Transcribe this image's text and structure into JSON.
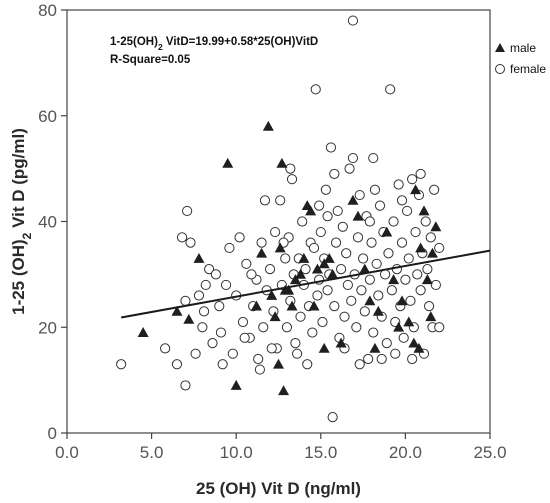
{
  "chart_data": {
    "type": "scatter",
    "xlabel": "25 (OH) Vit D (ng/ml)",
    "ylabel_parts": [
      "1-25 (OH)",
      "2",
      " Vit D (pg/ml)"
    ],
    "xlim": [
      0,
      25
    ],
    "ylim": [
      0,
      80
    ],
    "x_ticks": [
      "0.0",
      "5.0",
      "10.0",
      "15.0",
      "20.0",
      "25.0"
    ],
    "y_ticks": [
      "0",
      "20",
      "40",
      "60",
      "80"
    ],
    "x_tick_values": [
      0,
      5,
      10,
      15,
      20,
      25
    ],
    "y_tick_values": [
      0,
      20,
      40,
      60,
      80
    ],
    "equation_parts": [
      "1-25(OH)",
      "2",
      " VitD=19.99+0.58*25(OH)VitD"
    ],
    "r_square": "R-Square=0.05",
    "regression": {
      "intercept": 19.99,
      "slope": 0.58,
      "x_range": [
        3.2,
        25
      ]
    },
    "legend": {
      "position": "top-right",
      "male_label": "male",
      "female_label": "female"
    },
    "grid": false,
    "colors": {
      "male": "#1f1f1f",
      "female_edge": "#333333",
      "line": "#1a1a1a",
      "axis": "#444444"
    },
    "series": [
      {
        "name": "male",
        "marker": "triangle-filled",
        "points": [
          [
            4.5,
            19
          ],
          [
            6.5,
            23
          ],
          [
            7.2,
            21.5
          ],
          [
            7.8,
            33
          ],
          [
            9.5,
            51
          ],
          [
            10,
            9
          ],
          [
            11.2,
            24
          ],
          [
            11.5,
            34
          ],
          [
            11.9,
            58
          ],
          [
            12.1,
            26
          ],
          [
            12.3,
            22
          ],
          [
            12.5,
            13
          ],
          [
            12.6,
            35
          ],
          [
            12.7,
            51
          ],
          [
            12.9,
            27
          ],
          [
            12.8,
            8
          ],
          [
            13.3,
            24
          ],
          [
            13.5,
            29
          ],
          [
            13.8,
            30
          ],
          [
            14,
            33
          ],
          [
            14.2,
            43
          ],
          [
            14.4,
            42
          ],
          [
            14.8,
            31
          ],
          [
            15.2,
            16
          ],
          [
            15.2,
            32
          ],
          [
            15.5,
            33
          ],
          [
            15.7,
            30
          ],
          [
            16.2,
            17
          ],
          [
            16.9,
            44
          ],
          [
            17.2,
            41
          ],
          [
            17.6,
            31
          ],
          [
            17.9,
            25
          ],
          [
            18.2,
            16
          ],
          [
            18.4,
            23
          ],
          [
            18.9,
            38
          ],
          [
            19.3,
            29
          ],
          [
            20.2,
            21
          ],
          [
            20.6,
            46
          ],
          [
            20.9,
            35
          ],
          [
            21.1,
            42
          ],
          [
            20.8,
            16
          ],
          [
            20.5,
            17
          ],
          [
            21.3,
            29
          ],
          [
            21.5,
            22
          ],
          [
            21.6,
            34
          ],
          [
            21.8,
            39
          ],
          [
            19.6,
            20
          ],
          [
            19.8,
            25
          ],
          [
            14.6,
            24
          ],
          [
            13.1,
            27
          ]
        ]
      },
      {
        "name": "female",
        "marker": "circle-open",
        "points": [
          [
            3.2,
            13
          ],
          [
            5.8,
            16
          ],
          [
            6.5,
            13
          ],
          [
            6.8,
            37
          ],
          [
            7,
            25
          ],
          [
            7,
            9
          ],
          [
            7.1,
            42
          ],
          [
            7.3,
            36
          ],
          [
            7.6,
            15
          ],
          [
            7.8,
            26
          ],
          [
            8,
            20
          ],
          [
            8.2,
            28
          ],
          [
            8.4,
            31
          ],
          [
            8.6,
            17
          ],
          [
            8.8,
            30
          ],
          [
            9,
            24
          ],
          [
            9.2,
            13
          ],
          [
            9.4,
            28
          ],
          [
            9.6,
            35
          ],
          [
            9.8,
            15
          ],
          [
            10,
            26
          ],
          [
            10.2,
            37
          ],
          [
            10.4,
            21
          ],
          [
            10.6,
            32
          ],
          [
            10.8,
            18
          ],
          [
            11,
            24
          ],
          [
            11.2,
            29
          ],
          [
            11.3,
            14
          ],
          [
            11.5,
            36
          ],
          [
            11.6,
            20
          ],
          [
            11.8,
            27
          ],
          [
            12,
            31
          ],
          [
            12.2,
            23
          ],
          [
            12.3,
            38
          ],
          [
            12.4,
            16
          ],
          [
            12.6,
            44
          ],
          [
            12.7,
            28
          ],
          [
            12.9,
            33
          ],
          [
            13,
            20
          ],
          [
            13.1,
            37
          ],
          [
            13.2,
            25
          ],
          [
            13.3,
            48
          ],
          [
            13.4,
            30
          ],
          [
            13.5,
            17
          ],
          [
            13.7,
            33
          ],
          [
            13.8,
            22
          ],
          [
            13.9,
            40
          ],
          [
            14,
            28
          ],
          [
            14.1,
            31
          ],
          [
            14.3,
            24
          ],
          [
            14.4,
            36
          ],
          [
            14.5,
            19
          ],
          [
            14.6,
            35
          ],
          [
            14.7,
            65
          ],
          [
            14.8,
            26
          ],
          [
            14.9,
            29
          ],
          [
            15,
            38
          ],
          [
            15.1,
            21
          ],
          [
            15.2,
            33
          ],
          [
            15.3,
            46
          ],
          [
            15.4,
            27
          ],
          [
            15.5,
            30
          ],
          [
            15.6,
            54
          ],
          [
            15.7,
            3
          ],
          [
            15.8,
            24
          ],
          [
            15.9,
            36
          ],
          [
            16,
            42
          ],
          [
            16.1,
            18
          ],
          [
            16.2,
            31
          ],
          [
            16.3,
            39
          ],
          [
            16.4,
            22
          ],
          [
            16.5,
            34
          ],
          [
            16.6,
            28
          ],
          [
            16.7,
            50
          ],
          [
            16.8,
            25
          ],
          [
            16.9,
            78
          ],
          [
            17,
            30
          ],
          [
            17.1,
            20
          ],
          [
            17.2,
            37
          ],
          [
            17.3,
            45
          ],
          [
            17.4,
            27
          ],
          [
            17.5,
            33
          ],
          [
            17.6,
            23
          ],
          [
            17.7,
            41
          ],
          [
            17.8,
            14
          ],
          [
            17.9,
            29
          ],
          [
            18,
            36
          ],
          [
            18.1,
            19
          ],
          [
            18.2,
            46
          ],
          [
            18.3,
            32
          ],
          [
            18.4,
            26
          ],
          [
            18.5,
            43
          ],
          [
            18.6,
            22
          ],
          [
            18.7,
            38
          ],
          [
            18.8,
            30
          ],
          [
            18.9,
            17
          ],
          [
            19,
            34
          ],
          [
            19.1,
            65
          ],
          [
            19.2,
            27
          ],
          [
            19.3,
            40
          ],
          [
            19.4,
            21
          ],
          [
            19.5,
            31
          ],
          [
            19.6,
            47
          ],
          [
            19.7,
            24
          ],
          [
            19.8,
            36
          ],
          [
            19.9,
            18
          ],
          [
            20,
            29
          ],
          [
            20.1,
            42
          ],
          [
            20.2,
            33
          ],
          [
            20.3,
            25
          ],
          [
            20.4,
            48
          ],
          [
            20.5,
            20
          ],
          [
            20.6,
            38
          ],
          [
            20.7,
            30
          ],
          [
            20.8,
            45
          ],
          [
            20.9,
            27
          ],
          [
            21,
            34
          ],
          [
            21.1,
            15
          ],
          [
            21.2,
            40
          ],
          [
            21.3,
            31
          ],
          [
            21.4,
            24
          ],
          [
            21.5,
            37
          ],
          [
            21.6,
            20
          ],
          [
            21.7,
            46
          ],
          [
            21.8,
            28
          ],
          [
            22,
            35
          ],
          [
            22,
            20
          ],
          [
            10.5,
            18
          ],
          [
            11.4,
            12
          ],
          [
            12.1,
            16
          ],
          [
            13.6,
            15
          ],
          [
            14.2,
            13
          ],
          [
            16.4,
            16
          ],
          [
            17.3,
            13
          ],
          [
            18.6,
            14
          ],
          [
            19.4,
            15
          ],
          [
            20.4,
            14
          ],
          [
            9.1,
            19
          ],
          [
            8.1,
            23
          ],
          [
            10.9,
            30
          ],
          [
            12.8,
            36
          ],
          [
            15.8,
            49
          ],
          [
            16.9,
            52
          ],
          [
            18.1,
            52
          ],
          [
            14.9,
            43
          ],
          [
            20.9,
            49
          ],
          [
            19.8,
            44
          ],
          [
            11.7,
            44
          ],
          [
            13.2,
            50
          ],
          [
            17.9,
            40
          ],
          [
            15.4,
            41
          ]
        ]
      }
    ]
  }
}
